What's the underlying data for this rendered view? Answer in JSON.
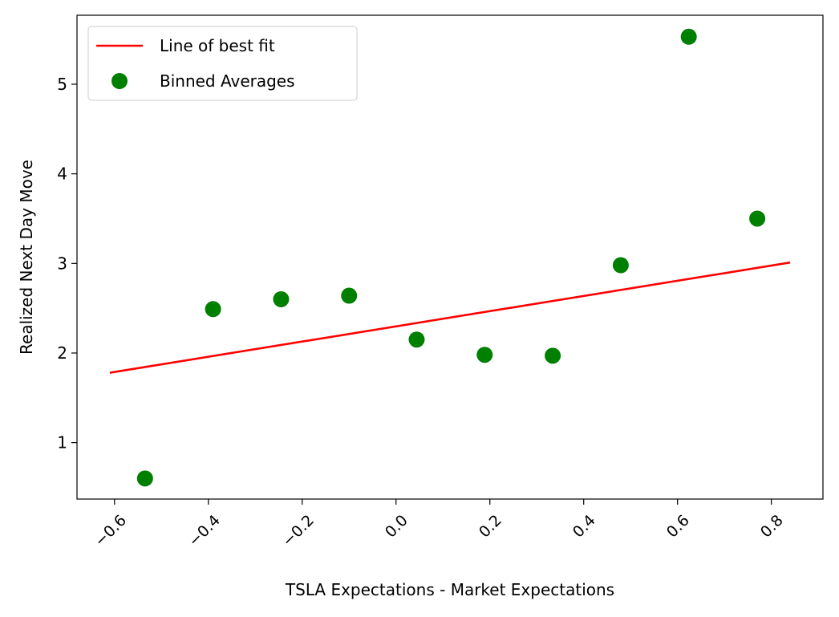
{
  "chart_data": {
    "type": "scatter",
    "xlabel": "TSLA Expectations - Market Expectations",
    "ylabel": "Realized Next Day Move",
    "xlim": [
      -0.68,
      0.91
    ],
    "ylim": [
      0.37,
      5.77
    ],
    "xticks": [
      -0.6,
      -0.4,
      -0.2,
      0.0,
      0.2,
      0.4,
      0.6,
      0.8
    ],
    "xtick_labels": [
      "−0.6",
      "−0.4",
      "−0.2",
      "0.0",
      "0.2",
      "0.4",
      "0.6",
      "0.8"
    ],
    "yticks": [
      1,
      2,
      3,
      4,
      5
    ],
    "ytick_labels": [
      "1",
      "2",
      "3",
      "4",
      "5"
    ],
    "grid": false,
    "legend_position": "upper-left",
    "series": [
      {
        "name": "Line of best fit",
        "kind": "line",
        "color": "#ff0000",
        "x": [
          -0.61,
          0.84
        ],
        "y": [
          1.78,
          3.01
        ]
      },
      {
        "name": "Binned Averages",
        "kind": "scatter",
        "color": "#008000",
        "x": [
          -0.535,
          -0.39,
          -0.245,
          -0.1,
          0.044,
          0.189,
          0.334,
          0.479,
          0.624,
          0.77
        ],
        "y": [
          0.6,
          2.49,
          2.6,
          2.64,
          2.15,
          1.98,
          1.97,
          2.98,
          5.53,
          3.5
        ]
      }
    ]
  }
}
